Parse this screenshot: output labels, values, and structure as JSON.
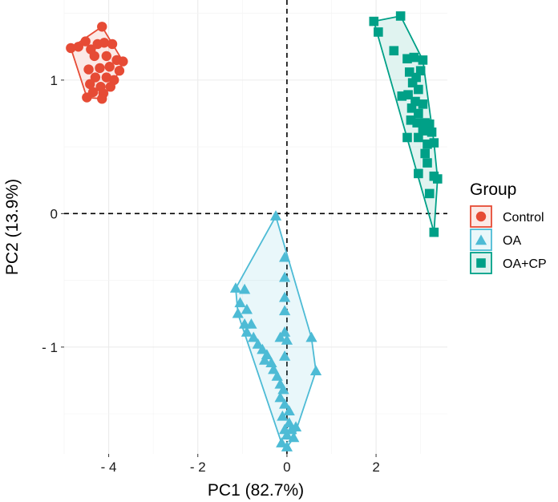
{
  "chart_data": {
    "type": "scatter",
    "title": "",
    "xlabel": "PC1 (82.7%)",
    "ylabel": "PC2 (13.9%)",
    "xlim": [
      -5.0,
      3.6
    ],
    "ylim": [
      -1.8,
      1.6
    ],
    "xticks": [
      -4,
      -2,
      0,
      2
    ],
    "xtick_labels": [
      "- 4",
      "- 2",
      "0",
      "2"
    ],
    "yticks": [
      -1,
      0,
      1
    ],
    "ytick_labels": [
      "- 1",
      "0",
      "1"
    ],
    "reference_lines": {
      "x": 0,
      "y": 0,
      "style": "dashed"
    },
    "hulls": "convex hull drawn around each group",
    "legend": {
      "title": "Group",
      "position": "right"
    },
    "series": [
      {
        "name": "Control",
        "color": "#E64B35",
        "marker": "circle",
        "points": [
          [
            -4.15,
            1.4
          ],
          [
            -4.85,
            1.24
          ],
          [
            -4.68,
            1.25
          ],
          [
            -4.52,
            1.29
          ],
          [
            -4.4,
            1.23
          ],
          [
            -4.25,
            1.27
          ],
          [
            -4.1,
            1.28
          ],
          [
            -3.92,
            1.27
          ],
          [
            -4.32,
            1.18
          ],
          [
            -4.05,
            1.18
          ],
          [
            -3.82,
            1.15
          ],
          [
            -3.68,
            1.14
          ],
          [
            -4.45,
            1.08
          ],
          [
            -4.2,
            1.09
          ],
          [
            -3.98,
            1.1
          ],
          [
            -3.76,
            1.07
          ],
          [
            -4.3,
            1.02
          ],
          [
            -4.05,
            1.02
          ],
          [
            -3.88,
            1.0
          ],
          [
            -4.42,
            0.97
          ],
          [
            -4.18,
            0.95
          ],
          [
            -3.96,
            0.95
          ],
          [
            -4.35,
            0.91
          ],
          [
            -4.12,
            0.9
          ],
          [
            -4.49,
            0.87
          ],
          [
            -4.15,
            0.86
          ]
        ]
      },
      {
        "name": "OA",
        "color": "#4DBBD5",
        "marker": "triangle",
        "points": [
          [
            -0.25,
            -0.02
          ],
          [
            -1.15,
            -0.56
          ],
          [
            -0.95,
            -0.57
          ],
          [
            -1.05,
            -0.67
          ],
          [
            -0.9,
            -0.72
          ],
          [
            -1.1,
            -0.75
          ],
          [
            -0.95,
            -0.83
          ],
          [
            -0.8,
            -0.83
          ],
          [
            -0.9,
            -0.89
          ],
          [
            -0.75,
            -0.93
          ],
          [
            -0.65,
            -0.98
          ],
          [
            -0.55,
            -1.02
          ],
          [
            -0.45,
            -1.06
          ],
          [
            -0.5,
            -1.1
          ],
          [
            -0.35,
            -1.12
          ],
          [
            -0.3,
            -1.17
          ],
          [
            -0.22,
            -1.22
          ],
          [
            -0.15,
            -1.28
          ],
          [
            -0.08,
            -1.32
          ],
          [
            -0.15,
            -1.38
          ],
          [
            -0.05,
            -1.43
          ],
          [
            0.05,
            -1.48
          ],
          [
            -0.1,
            -1.52
          ],
          [
            0.05,
            -1.57
          ],
          [
            -0.05,
            -1.62
          ],
          [
            0.1,
            -1.62
          ],
          [
            0.0,
            -1.66
          ],
          [
            0.15,
            -1.68
          ],
          [
            0.2,
            -1.6
          ],
          [
            -0.12,
            -1.72
          ],
          [
            0.0,
            -1.75
          ],
          [
            -0.05,
            -0.33
          ],
          [
            -0.05,
            -0.48
          ],
          [
            -0.05,
            -0.63
          ],
          [
            -0.05,
            -0.73
          ],
          [
            -0.05,
            -0.89
          ],
          [
            -0.15,
            -0.93
          ],
          [
            0.0,
            -0.95
          ],
          [
            -0.05,
            -1.07
          ],
          [
            0.55,
            -0.93
          ],
          [
            0.65,
            -1.18
          ]
        ]
      },
      {
        "name": "OA+CP",
        "color": "#00A087",
        "marker": "square",
        "points": [
          [
            1.95,
            1.44
          ],
          [
            2.05,
            1.36
          ],
          [
            2.55,
            1.48
          ],
          [
            2.4,
            1.22
          ],
          [
            2.7,
            1.16
          ],
          [
            2.85,
            1.17
          ],
          [
            3.05,
            1.15
          ],
          [
            3.0,
            1.07
          ],
          [
            2.75,
            1.06
          ],
          [
            2.9,
            1.02
          ],
          [
            2.82,
            0.98
          ],
          [
            2.95,
            0.93
          ],
          [
            2.72,
            0.89
          ],
          [
            2.58,
            0.88
          ],
          [
            2.88,
            0.84
          ],
          [
            3.05,
            0.82
          ],
          [
            2.8,
            0.79
          ],
          [
            2.95,
            0.75
          ],
          [
            2.78,
            0.7
          ],
          [
            2.92,
            0.68
          ],
          [
            3.1,
            0.68
          ],
          [
            3.2,
            0.67
          ],
          [
            3.05,
            0.62
          ],
          [
            2.95,
            0.57
          ],
          [
            3.25,
            0.61
          ],
          [
            2.7,
            0.57
          ],
          [
            3.15,
            0.52
          ],
          [
            3.3,
            0.53
          ],
          [
            3.1,
            0.45
          ],
          [
            3.15,
            0.38
          ],
          [
            2.95,
            0.3
          ],
          [
            3.3,
            0.28
          ],
          [
            3.38,
            0.26
          ],
          [
            3.2,
            0.15
          ],
          [
            3.3,
            -0.14
          ]
        ]
      }
    ]
  }
}
